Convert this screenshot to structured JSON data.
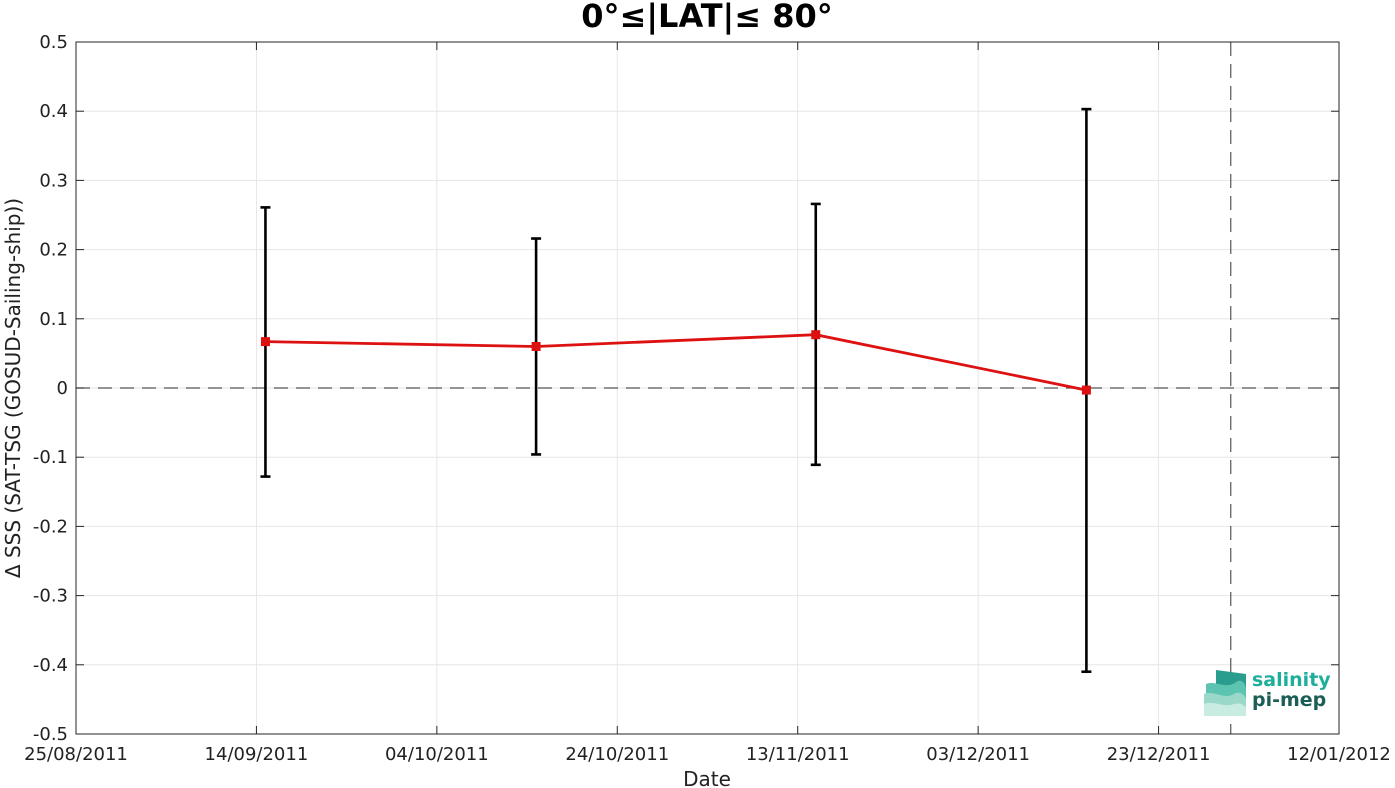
{
  "chart_data": {
    "type": "line",
    "title": "0°≤|LAT|≤ 80°",
    "xlabel": "Date",
    "ylabel": "Δ SSS (SAT-TSG (GOSUD-Sailing-ship))",
    "x_tick_labels": [
      "25/08/2011",
      "14/09/2011",
      "04/10/2011",
      "24/10/2011",
      "13/11/2011",
      "03/12/2011",
      "23/12/2011",
      "12/01/2012"
    ],
    "y_tick_labels": [
      "0.5",
      "0.4",
      "0.3",
      "0.2",
      "0.1",
      "0",
      "-0.1",
      "-0.2",
      "-0.3",
      "-0.4",
      "-0.5"
    ],
    "xlim": [
      "2011-08-25",
      "2012-01-12"
    ],
    "ylim": [
      -0.5,
      0.5
    ],
    "grid": true,
    "series": [
      {
        "color": "#dd1111",
        "points": [
          {
            "x": "2011-09-15",
            "y": 0.067,
            "err_low": -0.128,
            "err_high": 0.261
          },
          {
            "x": "2011-10-15",
            "y": 0.06,
            "err_low": -0.096,
            "err_high": 0.216
          },
          {
            "x": "2011-11-15",
            "y": 0.077,
            "err_low": -0.111,
            "err_high": 0.266
          },
          {
            "x": "2011-12-15",
            "y": -0.003,
            "err_low": -0.41,
            "err_high": 0.403
          }
        ]
      }
    ],
    "reference_lines": [
      {
        "orientation": "horizontal",
        "y": 0
      },
      {
        "orientation": "vertical",
        "x": "2011-12-31"
      }
    ]
  },
  "logo": {
    "line1": "salinity",
    "line2": "pi-mep",
    "color1": "#1fae9a",
    "color2": "#1b5e56"
  }
}
